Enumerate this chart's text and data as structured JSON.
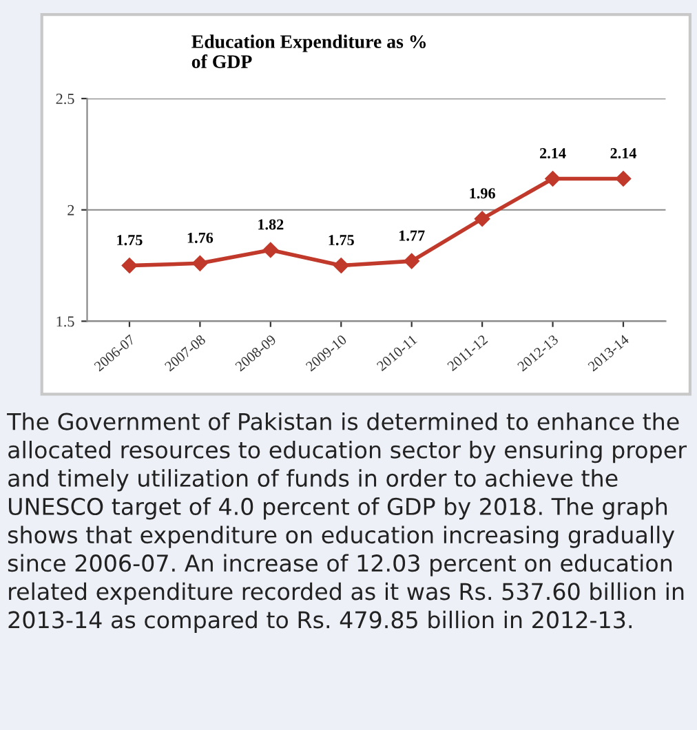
{
  "chart_data": {
    "type": "line",
    "title": "Education Expenditure as %\nof GDP",
    "categories": [
      "2006-07",
      "2007-08",
      "2008-09",
      "2009-10",
      "2010-11",
      "2011-12",
      "2012-13",
      "2013-14"
    ],
    "series": [
      {
        "color": "#c0392b",
        "values": [
          1.75,
          1.76,
          1.82,
          1.75,
          1.77,
          1.96,
          2.14,
          2.14
        ]
      }
    ],
    "ylim": [
      1.5,
      2.5
    ],
    "yticks": [
      1.5,
      2,
      2.5
    ],
    "grid": "y",
    "marker": "diamond",
    "line_style": "solid",
    "data_labels": true,
    "legend": false,
    "annotations": [
      "The Government of Pakistan is determined to enhance the allocated resources to education sector by ensuring proper and timely utilization of funds in order to achieve the UNESCO target of 4.0 percent of GDP by 2018. The graph shows that expenditure on education increasing gradually since 2006-07. An increase of 12.03 percent on education related expenditure recorded as it was Rs. 537.60 billion in 2013-14 as compared to Rs. 479.85 billion in 2012-13."
    ]
  }
}
